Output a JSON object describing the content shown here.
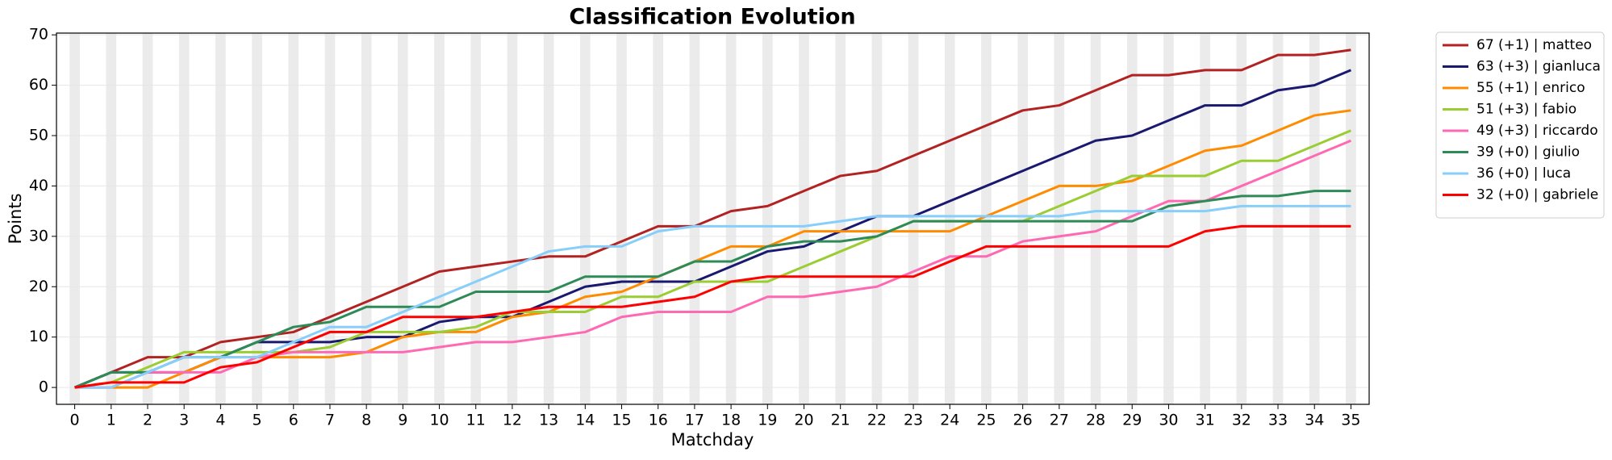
{
  "chart_data": {
    "type": "line",
    "title": "Classification Evolution",
    "x_label": "Matchday",
    "y_label": "Points",
    "x": [
      0,
      1,
      2,
      3,
      4,
      5,
      6,
      7,
      8,
      9,
      10,
      11,
      12,
      13,
      14,
      15,
      16,
      17,
      18,
      19,
      20,
      21,
      22,
      23,
      24,
      25,
      26,
      27,
      28,
      29,
      30,
      31,
      32,
      33,
      34,
      35
    ],
    "xlim": [
      -0.5,
      35.5
    ],
    "xticks": [
      0,
      1,
      2,
      3,
      4,
      5,
      6,
      7,
      8,
      9,
      10,
      11,
      12,
      13,
      14,
      15,
      16,
      17,
      18,
      19,
      20,
      21,
      22,
      23,
      24,
      25,
      26,
      27,
      28,
      29,
      30,
      31,
      32,
      33,
      34,
      35
    ],
    "ylim": [
      -3.35,
      70.35
    ],
    "yticks": [
      0,
      10,
      20,
      30,
      40,
      50,
      60,
      70
    ],
    "grid": true,
    "legend": "outside upper right",
    "series": [
      {
        "name": "67 (+1) | matteo",
        "color": "#b22222",
        "values": [
          0,
          3,
          6,
          6,
          9,
          10,
          11,
          14,
          17,
          20,
          23,
          24,
          25,
          26,
          26,
          29,
          32,
          32,
          35,
          36,
          39,
          42,
          43,
          46,
          49,
          52,
          55,
          56,
          59,
          62,
          62,
          63,
          63,
          66,
          66,
          67
        ]
      },
      {
        "name": "63 (+3) | gianluca",
        "color": "#191970",
        "values": [
          0,
          3,
          3,
          3,
          6,
          9,
          9,
          9,
          10,
          10,
          13,
          14,
          14,
          17,
          20,
          21,
          21,
          21,
          24,
          27,
          28,
          31,
          34,
          34,
          37,
          40,
          43,
          46,
          49,
          50,
          53,
          56,
          56,
          59,
          60,
          63
        ]
      },
      {
        "name": "55 (+1) | enrico",
        "color": "#ff8c00",
        "values": [
          0,
          0,
          0,
          3,
          6,
          6,
          6,
          6,
          7,
          10,
          11,
          11,
          14,
          15,
          18,
          19,
          22,
          25,
          28,
          28,
          31,
          31,
          31,
          31,
          31,
          34,
          37,
          40,
          40,
          41,
          44,
          47,
          48,
          51,
          54,
          55
        ]
      },
      {
        "name": "51 (+3) | fabio",
        "color": "#9acd32",
        "values": [
          0,
          1,
          4,
          7,
          7,
          7,
          7,
          8,
          11,
          11,
          11,
          12,
          15,
          15,
          15,
          18,
          18,
          21,
          21,
          21,
          24,
          27,
          30,
          33,
          33,
          33,
          33,
          36,
          39,
          42,
          42,
          42,
          45,
          45,
          48,
          51
        ]
      },
      {
        "name": "49 (+3) | riccardo",
        "color": "#ff69b4",
        "values": [
          0,
          0,
          3,
          3,
          3,
          6,
          7,
          7,
          7,
          7,
          8,
          9,
          9,
          10,
          11,
          14,
          15,
          15,
          15,
          18,
          18,
          19,
          20,
          23,
          26,
          26,
          29,
          30,
          31,
          34,
          37,
          37,
          40,
          43,
          46,
          49
        ]
      },
      {
        "name": "39 (+0) | giulio",
        "color": "#2e8b57",
        "values": [
          0,
          3,
          3,
          6,
          6,
          9,
          12,
          13,
          16,
          16,
          16,
          19,
          19,
          19,
          22,
          22,
          22,
          25,
          25,
          28,
          29,
          29,
          30,
          33,
          33,
          33,
          33,
          33,
          33,
          33,
          36,
          37,
          38,
          38,
          39,
          39
        ]
      },
      {
        "name": "36 (+0) | luca",
        "color": "#87cefa",
        "values": [
          0,
          0,
          3,
          6,
          6,
          6,
          9,
          12,
          12,
          15,
          18,
          21,
          24,
          27,
          28,
          28,
          31,
          32,
          32,
          32,
          32,
          33,
          34,
          34,
          34,
          34,
          34,
          34,
          35,
          35,
          35,
          35,
          36,
          36,
          36,
          36
        ]
      },
      {
        "name": "32 (+0) | gabriele",
        "color": "#ff0000",
        "values": [
          0,
          1,
          1,
          1,
          4,
          5,
          8,
          11,
          11,
          14,
          14,
          14,
          15,
          16,
          16,
          16,
          17,
          18,
          21,
          22,
          22,
          22,
          22,
          22,
          25,
          28,
          28,
          28,
          28,
          28,
          28,
          31,
          32,
          32,
          32,
          32
        ]
      }
    ]
  }
}
